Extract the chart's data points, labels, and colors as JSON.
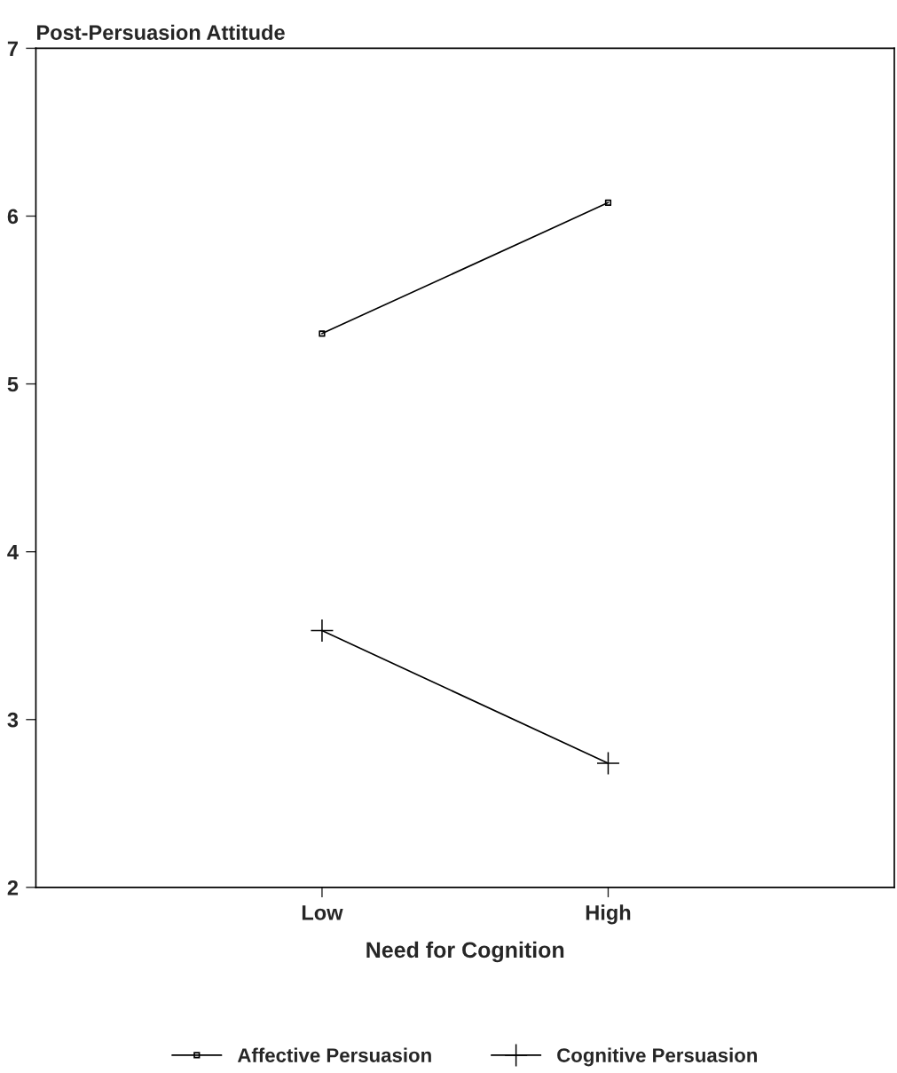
{
  "chart_data": {
    "type": "line",
    "ylabel": "Post-Persuasion Attitude",
    "xlabel": "Need for Cognition",
    "categories": [
      "Low",
      "High"
    ],
    "series": [
      {
        "name": "Affective Persuasion",
        "color": "#000000",
        "marker": "square",
        "values": [
          5.3,
          6.08
        ]
      },
      {
        "name": "Cognitive Persuasion",
        "color": "#000000",
        "marker": "cross",
        "values": [
          3.53,
          2.74
        ]
      }
    ],
    "ylim": [
      2,
      7
    ],
    "yticks": [
      2,
      3,
      4,
      5,
      6,
      7
    ],
    "grid": false,
    "legend": "bottom",
    "line_style": "solid"
  }
}
